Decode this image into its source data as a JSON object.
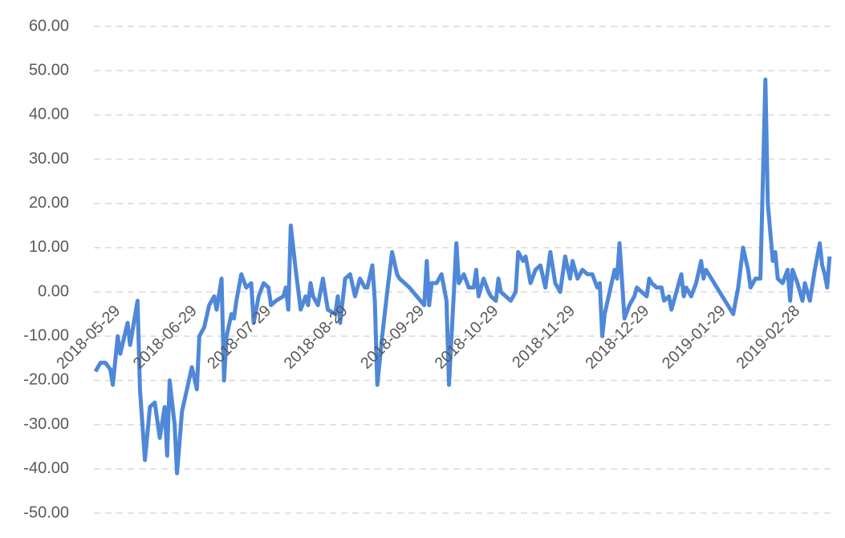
{
  "chart_data": {
    "type": "line",
    "color": "#4f88d8",
    "grid": true,
    "x": [
      "2018-05-29",
      "2018-05-31",
      "2018-06-02",
      "2018-06-04",
      "2018-06-05",
      "2018-06-07",
      "2018-06-08",
      "2018-06-11",
      "2018-06-12",
      "2018-06-15",
      "2018-06-16",
      "2018-06-18",
      "2018-06-20",
      "2018-06-22",
      "2018-06-24",
      "2018-06-26",
      "2018-06-27",
      "2018-06-28",
      "2018-06-30",
      "2018-07-01",
      "2018-07-03",
      "2018-07-05",
      "2018-07-07",
      "2018-07-09",
      "2018-07-10",
      "2018-07-12",
      "2018-07-14",
      "2018-07-16",
      "2018-07-17",
      "2018-07-19",
      "2018-07-20",
      "2018-07-21",
      "2018-07-23",
      "2018-07-24",
      "2018-07-25",
      "2018-07-27",
      "2018-07-29",
      "2018-07-31",
      "2018-08-01",
      "2018-08-03",
      "2018-08-05",
      "2018-08-07",
      "2018-08-08",
      "2018-08-10",
      "2018-08-13",
      "2018-08-14",
      "2018-08-15",
      "2018-08-16",
      "2018-08-18",
      "2018-08-20",
      "2018-08-22",
      "2018-08-23",
      "2018-08-24",
      "2018-08-25",
      "2018-08-27",
      "2018-08-29",
      "2018-08-31",
      "2018-09-03",
      "2018-09-04",
      "2018-09-05",
      "2018-09-06",
      "2018-09-07",
      "2018-09-09",
      "2018-09-11",
      "2018-09-13",
      "2018-09-15",
      "2018-09-16",
      "2018-09-18",
      "2018-09-19",
      "2018-09-20",
      "2018-09-22",
      "2018-09-24",
      "2018-09-26",
      "2018-09-28",
      "2018-09-29",
      "2018-10-03",
      "2018-10-06",
      "2018-10-09",
      "2018-10-10",
      "2018-10-11",
      "2018-10-12",
      "2018-10-14",
      "2018-10-16",
      "2018-10-18",
      "2018-10-19",
      "2018-10-21",
      "2018-10-22",
      "2018-10-23",
      "2018-10-25",
      "2018-10-27",
      "2018-10-29",
      "2018-10-30",
      "2018-10-31",
      "2018-11-02",
      "2018-11-04",
      "2018-11-05",
      "2018-11-07",
      "2018-11-08",
      "2018-11-09",
      "2018-11-11",
      "2018-11-13",
      "2018-11-15",
      "2018-11-16",
      "2018-11-18",
      "2018-11-19",
      "2018-11-21",
      "2018-11-23",
      "2018-11-25",
      "2018-11-27",
      "2018-11-29",
      "2018-12-01",
      "2018-12-03",
      "2018-12-05",
      "2018-12-07",
      "2018-12-08",
      "2018-12-10",
      "2018-12-12",
      "2018-12-14",
      "2018-12-16",
      "2018-12-18",
      "2018-12-19",
      "2018-12-20",
      "2018-12-21",
      "2018-12-23",
      "2018-12-25",
      "2018-12-26",
      "2018-12-27",
      "2018-12-29",
      "2018-12-31",
      "2019-01-02",
      "2019-01-03",
      "2019-01-05",
      "2019-01-07",
      "2019-01-08",
      "2019-01-09",
      "2019-01-11",
      "2019-01-13",
      "2019-01-14",
      "2019-01-16",
      "2019-01-17",
      "2019-01-19",
      "2019-01-21",
      "2019-01-22",
      "2019-01-23",
      "2019-01-25",
      "2019-01-27",
      "2019-01-29",
      "2019-01-30",
      "2019-01-31",
      "2019-02-11",
      "2019-02-13",
      "2019-02-15",
      "2019-02-17",
      "2019-02-18",
      "2019-02-20",
      "2019-02-22",
      "2019-02-24",
      "2019-02-25",
      "2019-02-27",
      "2019-02-28",
      "2019-03-01",
      "2019-03-03",
      "2019-03-05",
      "2019-03-06",
      "2019-03-07",
      "2019-03-09",
      "2019-03-11",
      "2019-03-12",
      "2019-03-14",
      "2019-03-16",
      "2019-03-18",
      "2019-03-19",
      "2019-03-20",
      "2019-03-21",
      "2019-03-22"
    ],
    "values": [
      -18,
      -16,
      -16,
      -17.5,
      -21,
      -10,
      -14,
      -7,
      -12,
      -2,
      -22,
      -38,
      -26,
      -25,
      -33,
      -26,
      -37,
      -20,
      -30,
      -41,
      -27,
      -22,
      -17,
      -22,
      -10,
      -8,
      -3,
      -1,
      -4,
      3,
      -20,
      -10,
      -5,
      -6,
      -2,
      4,
      1,
      2,
      -7,
      -1,
      2,
      1,
      -3,
      -2,
      -1,
      1,
      -4,
      15,
      5,
      -4,
      -1,
      -3,
      2,
      -1,
      -3,
      3,
      -4,
      -5,
      -1,
      -7,
      -2,
      3,
      4,
      -1,
      3,
      1,
      1,
      6,
      -2,
      -21,
      -10,
      0,
      9,
      4,
      3,
      1,
      -1,
      -3,
      7,
      -3,
      2,
      2,
      4,
      -2,
      -21,
      0,
      11,
      2,
      4,
      1,
      1,
      5,
      -1,
      3,
      0,
      -1,
      -2,
      3,
      0,
      -1,
      -2,
      0,
      9,
      7,
      8,
      2,
      5,
      6,
      1,
      9,
      2,
      0,
      8,
      3,
      7,
      3,
      5,
      4,
      4,
      1,
      2,
      -10,
      -5,
      0,
      5,
      3,
      11,
      -6,
      -3,
      -1,
      1,
      0,
      -1,
      3,
      2,
      1,
      1,
      -2,
      -1,
      -4,
      0,
      4,
      -1,
      1,
      -1,
      2,
      7,
      3,
      5,
      -5,
      1,
      10,
      5,
      1,
      3,
      3,
      48,
      20,
      7,
      9,
      3,
      2,
      5,
      -2,
      5,
      2,
      -2,
      2,
      -2,
      5,
      11,
      6,
      4,
      1,
      8
    ],
    "xlim": [
      "2018-05-29",
      "2019-03-24"
    ],
    "xticks": [
      "2018-05-29",
      "2018-06-29",
      "2018-07-29",
      "2018-08-29",
      "2018-09-29",
      "2018-10-29",
      "2018-11-29",
      "2018-12-29",
      "2019-01-29",
      "2019-02-28"
    ],
    "ylim": [
      -50,
      60
    ],
    "yticks": [
      {
        "value": -50,
        "label": "-50.00"
      },
      {
        "value": -40,
        "label": "-40.00"
      },
      {
        "value": -30,
        "label": "-30.00"
      },
      {
        "value": -20,
        "label": "-20.00"
      },
      {
        "value": -10,
        "label": "-10.00"
      },
      {
        "value": 0,
        "label": "0.00"
      },
      {
        "value": 10,
        "label": "10.00"
      },
      {
        "value": 20,
        "label": "20.00"
      },
      {
        "value": 30,
        "label": "30.00"
      },
      {
        "value": 40,
        "label": "40.00"
      },
      {
        "value": 50,
        "label": "50.00"
      },
      {
        "value": 60,
        "label": "60.00"
      }
    ]
  }
}
